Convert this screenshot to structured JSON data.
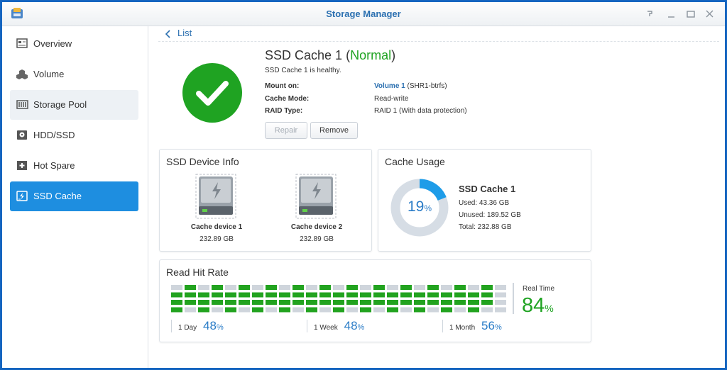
{
  "window": {
    "title": "Storage Manager"
  },
  "sidebar": {
    "items": [
      "Overview",
      "Volume",
      "Storage Pool",
      "HDD/SSD",
      "Hot Spare",
      "SSD Cache"
    ]
  },
  "back_link": "List",
  "cache": {
    "name": "SSD Cache 1",
    "status_open": "(",
    "status": "Normal",
    "status_close": ")",
    "message": "SSD Cache 1 is healthy.",
    "fields": [
      {
        "label": "Mount on:",
        "value": "Volume 1",
        "detail": "(SHR1-btrfs)"
      },
      {
        "label": "Cache Mode:",
        "value": "Read-write"
      },
      {
        "label": "RAID Type:",
        "value": "RAID 1 (With data protection)"
      }
    ],
    "buttons": [
      "Repair",
      "Remove"
    ]
  },
  "device_info": {
    "title": "SSD Device Info",
    "devices": [
      {
        "name": "Cache device 1",
        "size": "232.89 GB"
      },
      {
        "name": "Cache device 2",
        "size": "232.89 GB"
      }
    ]
  },
  "cache_usage": {
    "title": "Cache Usage",
    "percent": 19,
    "unit": "%",
    "name": "SSD Cache 1",
    "lines": [
      "Used: 43.36 GB",
      "Unused: 189.52 GB",
      "Total: 232.88 GB"
    ]
  },
  "hit_rate": {
    "title": "Read Hit Rate",
    "real_time_label": "Real Time",
    "real_time": 84,
    "unit": "%",
    "periods": [
      {
        "label": "1 Day",
        "value": 48
      },
      {
        "label": "1 Week",
        "value": 48
      },
      {
        "label": "1 Month",
        "value": 56
      }
    ]
  }
}
